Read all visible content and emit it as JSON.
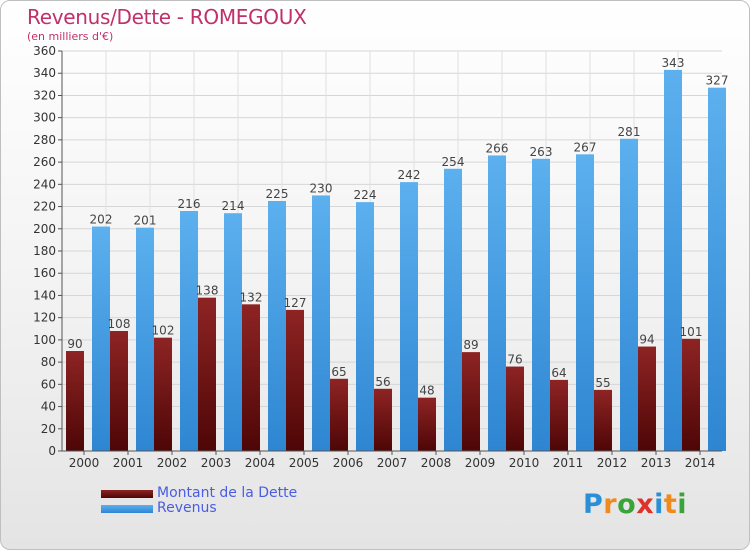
{
  "header": {
    "title": "Revenus/Dette - ROMEGOUX",
    "subtitle": "(en milliers d'€)"
  },
  "legend": {
    "items": [
      {
        "label": "Montant de la Dette",
        "color": "#7a1a1a"
      },
      {
        "label": "Revenus",
        "color": "#4aa0e0"
      }
    ]
  },
  "logo": {
    "text": "Proxiti",
    "letter_colors": [
      "#2a8fd6",
      "#f08a1c",
      "#3aa33a",
      "#e0302a",
      "#2a8fd6",
      "#f08a1c",
      "#3aa33a"
    ]
  },
  "chart_data": {
    "type": "bar",
    "categories": [
      "2000",
      "2001",
      "2002",
      "2003",
      "2004",
      "2005",
      "2006",
      "2007",
      "2008",
      "2009",
      "2010",
      "2011",
      "2012",
      "2013",
      "2014"
    ],
    "series": [
      {
        "name": "Montant de la Dette",
        "values": [
          90,
          108,
          102,
          138,
          132,
          127,
          65,
          56,
          48,
          89,
          76,
          64,
          55,
          94,
          101
        ],
        "color": "#7a1a1a"
      },
      {
        "name": "Revenus",
        "values": [
          202,
          201,
          216,
          214,
          225,
          230,
          224,
          242,
          254,
          266,
          263,
          267,
          281,
          343,
          327
        ],
        "color": "#4aa0e0"
      }
    ],
    "ylim": [
      0,
      360
    ],
    "ytick_step": 20,
    "grid": true,
    "xlabel": "",
    "ylabel": "",
    "legend_position": "bottom-left"
  }
}
